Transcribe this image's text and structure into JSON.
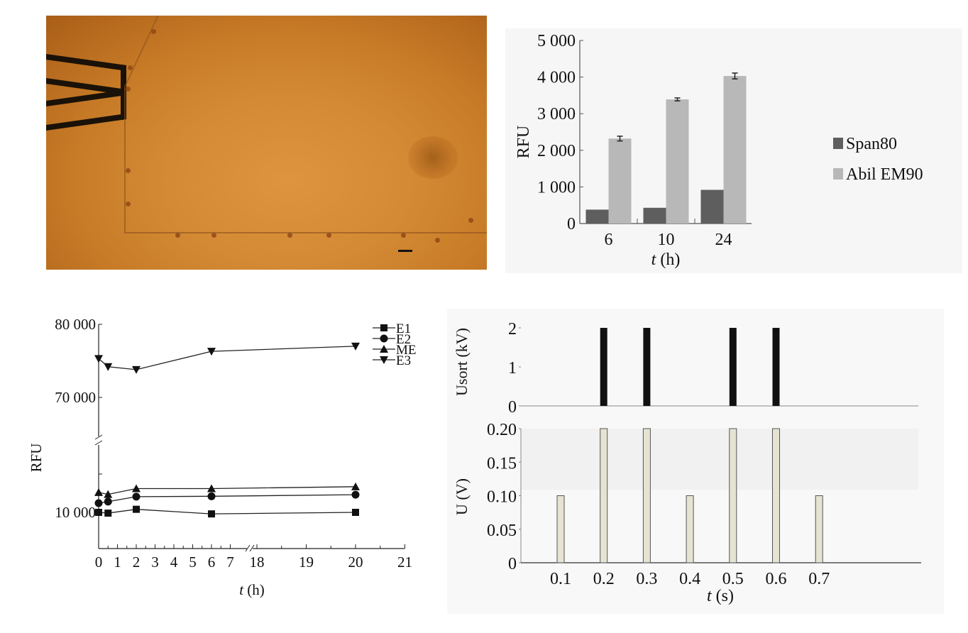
{
  "figure": {
    "photo": {
      "description": "Microscope image of microfluidic channel with electrodes",
      "scale_bar": true
    }
  },
  "chart_data": [
    {
      "id": "bar-rfu",
      "type": "bar",
      "title": "",
      "xlabel": "t (h)",
      "xlabel_var": "t",
      "xlabel_unit": " (h)",
      "ylabel": "RFU",
      "ylim": [
        0,
        5000
      ],
      "yticks": [
        0,
        1000,
        2000,
        3000,
        4000,
        5000
      ],
      "ytick_labels": [
        "0",
        "1 000",
        "2 000",
        "3 000",
        "4 000",
        "5 000"
      ],
      "categories": [
        "6",
        "10",
        "24"
      ],
      "series": [
        {
          "name": "Span80",
          "color": "#5e5e5e",
          "values": [
            380,
            430,
            920
          ]
        },
        {
          "name": "Abil EM90",
          "color": "#b8b8b8",
          "values": [
            2320,
            3390,
            4030
          ],
          "errors": [
            130,
            80,
            160
          ]
        }
      ],
      "legend_position": "right",
      "grid": false
    },
    {
      "id": "line-rfu",
      "type": "line",
      "title": "",
      "xlabel": "t (h)",
      "xlabel_var": "t",
      "xlabel_unit": " (h)",
      "ylabel": "RFU",
      "y_axis_break": [
        20000,
        65000
      ],
      "x_axis_break": [
        7,
        18
      ],
      "yticks": [
        10000,
        20000,
        70000,
        80000
      ],
      "ytick_labels": [
        "10 000",
        "",
        "70 000",
        "80 000"
      ],
      "xticks": [
        0,
        1,
        2,
        3,
        4,
        5,
        6,
        7,
        18,
        19,
        20,
        21
      ],
      "xtick_labels": [
        "0",
        "1",
        "2",
        "3",
        "4",
        "5",
        "6",
        "7",
        "18",
        "19",
        "20",
        "21"
      ],
      "x": [
        0,
        0.5,
        2,
        6,
        20
      ],
      "series": [
        {
          "name": "E1",
          "marker": "square",
          "values": [
            10000,
            9800,
            10800,
            9600,
            10000
          ]
        },
        {
          "name": "E2",
          "marker": "circle",
          "values": [
            12400,
            12800,
            14100,
            14200,
            14600
          ]
        },
        {
          "name": "ME",
          "marker": "triangle-up",
          "values": [
            15200,
            14700,
            16200,
            16200,
            16700
          ]
        },
        {
          "name": "E3",
          "marker": "triangle-down",
          "values": [
            75300,
            74200,
            73800,
            76300,
            77000
          ]
        }
      ],
      "legend_position": "top-right",
      "grid": false
    },
    {
      "id": "pulse-usort",
      "type": "bar",
      "title": "",
      "xlabel": "",
      "ylabel": "Usort (kV)",
      "ylim": [
        0,
        2
      ],
      "yticks": [
        0,
        1,
        2
      ],
      "ytick_labels": [
        "0",
        "1",
        "2"
      ],
      "categories": [
        "0.1",
        "0.2",
        "0.3",
        "0.4",
        "0.5",
        "0.6",
        "0.7"
      ],
      "values": [
        0,
        2,
        2,
        0,
        2,
        2,
        0
      ],
      "color": "#111111"
    },
    {
      "id": "pulse-u",
      "type": "bar",
      "title": "",
      "xlabel": "t (s)",
      "xlabel_var": "t",
      "xlabel_unit": " (s)",
      "ylabel": "U (V)",
      "ylim": [
        0,
        0.2
      ],
      "yticks": [
        0,
        0.05,
        0.1,
        0.15,
        0.2
      ],
      "ytick_labels": [
        "0",
        "0.05",
        "0.10",
        "0.15",
        "0.20"
      ],
      "categories": [
        "0.1",
        "0.2",
        "0.3",
        "0.4",
        "0.5",
        "0.6",
        "0.7"
      ],
      "values": [
        0.1,
        0.2,
        0.2,
        0.1,
        0.2,
        0.2,
        0.1
      ],
      "color": "#e6e3d3"
    }
  ]
}
